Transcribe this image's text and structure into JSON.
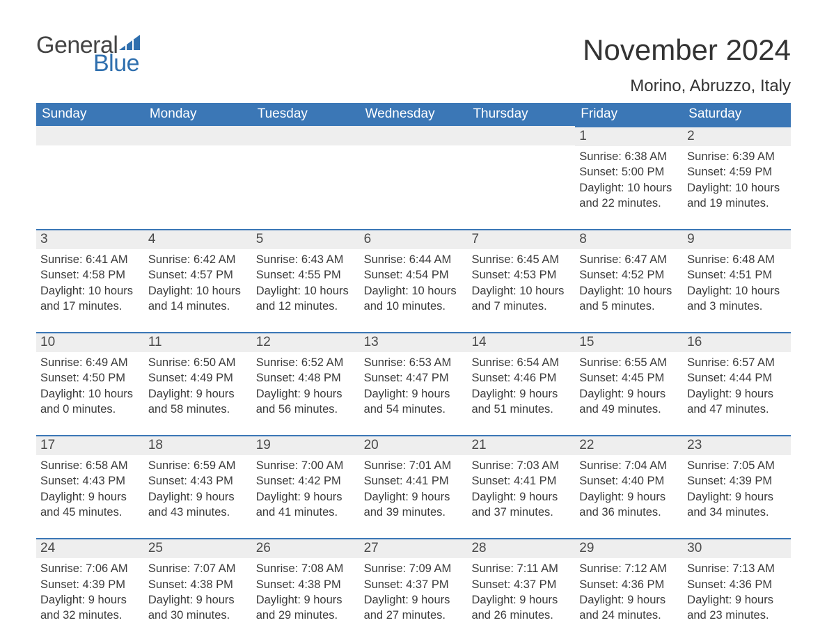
{
  "brand": {
    "word1": "General",
    "word2": "Blue",
    "text_color": "#444444",
    "accent_color": "#2f6fae"
  },
  "title": "November 2024",
  "location": "Morino, Abruzzo, Italy",
  "colors": {
    "header_bg": "#3b77b6",
    "header_text": "#ffffff",
    "daynum_bg": "#eeeeee",
    "day_border": "#3b77b6",
    "body_text": "#3b3b3b",
    "page_bg": "#ffffff"
  },
  "days_of_week": [
    "Sunday",
    "Monday",
    "Tuesday",
    "Wednesday",
    "Thursday",
    "Friday",
    "Saturday"
  ],
  "weeks": [
    [
      null,
      null,
      null,
      null,
      null,
      {
        "n": "1",
        "sunrise": "Sunrise: 6:38 AM",
        "sunset": "Sunset: 5:00 PM",
        "daylight": "Daylight: 10 hours and 22 minutes."
      },
      {
        "n": "2",
        "sunrise": "Sunrise: 6:39 AM",
        "sunset": "Sunset: 4:59 PM",
        "daylight": "Daylight: 10 hours and 19 minutes."
      }
    ],
    [
      {
        "n": "3",
        "sunrise": "Sunrise: 6:41 AM",
        "sunset": "Sunset: 4:58 PM",
        "daylight": "Daylight: 10 hours and 17 minutes."
      },
      {
        "n": "4",
        "sunrise": "Sunrise: 6:42 AM",
        "sunset": "Sunset: 4:57 PM",
        "daylight": "Daylight: 10 hours and 14 minutes."
      },
      {
        "n": "5",
        "sunrise": "Sunrise: 6:43 AM",
        "sunset": "Sunset: 4:55 PM",
        "daylight": "Daylight: 10 hours and 12 minutes."
      },
      {
        "n": "6",
        "sunrise": "Sunrise: 6:44 AM",
        "sunset": "Sunset: 4:54 PM",
        "daylight": "Daylight: 10 hours and 10 minutes."
      },
      {
        "n": "7",
        "sunrise": "Sunrise: 6:45 AM",
        "sunset": "Sunset: 4:53 PM",
        "daylight": "Daylight: 10 hours and 7 minutes."
      },
      {
        "n": "8",
        "sunrise": "Sunrise: 6:47 AM",
        "sunset": "Sunset: 4:52 PM",
        "daylight": "Daylight: 10 hours and 5 minutes."
      },
      {
        "n": "9",
        "sunrise": "Sunrise: 6:48 AM",
        "sunset": "Sunset: 4:51 PM",
        "daylight": "Daylight: 10 hours and 3 minutes."
      }
    ],
    [
      {
        "n": "10",
        "sunrise": "Sunrise: 6:49 AM",
        "sunset": "Sunset: 4:50 PM",
        "daylight": "Daylight: 10 hours and 0 minutes."
      },
      {
        "n": "11",
        "sunrise": "Sunrise: 6:50 AM",
        "sunset": "Sunset: 4:49 PM",
        "daylight": "Daylight: 9 hours and 58 minutes."
      },
      {
        "n": "12",
        "sunrise": "Sunrise: 6:52 AM",
        "sunset": "Sunset: 4:48 PM",
        "daylight": "Daylight: 9 hours and 56 minutes."
      },
      {
        "n": "13",
        "sunrise": "Sunrise: 6:53 AM",
        "sunset": "Sunset: 4:47 PM",
        "daylight": "Daylight: 9 hours and 54 minutes."
      },
      {
        "n": "14",
        "sunrise": "Sunrise: 6:54 AM",
        "sunset": "Sunset: 4:46 PM",
        "daylight": "Daylight: 9 hours and 51 minutes."
      },
      {
        "n": "15",
        "sunrise": "Sunrise: 6:55 AM",
        "sunset": "Sunset: 4:45 PM",
        "daylight": "Daylight: 9 hours and 49 minutes."
      },
      {
        "n": "16",
        "sunrise": "Sunrise: 6:57 AM",
        "sunset": "Sunset: 4:44 PM",
        "daylight": "Daylight: 9 hours and 47 minutes."
      }
    ],
    [
      {
        "n": "17",
        "sunrise": "Sunrise: 6:58 AM",
        "sunset": "Sunset: 4:43 PM",
        "daylight": "Daylight: 9 hours and 45 minutes."
      },
      {
        "n": "18",
        "sunrise": "Sunrise: 6:59 AM",
        "sunset": "Sunset: 4:43 PM",
        "daylight": "Daylight: 9 hours and 43 minutes."
      },
      {
        "n": "19",
        "sunrise": "Sunrise: 7:00 AM",
        "sunset": "Sunset: 4:42 PM",
        "daylight": "Daylight: 9 hours and 41 minutes."
      },
      {
        "n": "20",
        "sunrise": "Sunrise: 7:01 AM",
        "sunset": "Sunset: 4:41 PM",
        "daylight": "Daylight: 9 hours and 39 minutes."
      },
      {
        "n": "21",
        "sunrise": "Sunrise: 7:03 AM",
        "sunset": "Sunset: 4:41 PM",
        "daylight": "Daylight: 9 hours and 37 minutes."
      },
      {
        "n": "22",
        "sunrise": "Sunrise: 7:04 AM",
        "sunset": "Sunset: 4:40 PM",
        "daylight": "Daylight: 9 hours and 36 minutes."
      },
      {
        "n": "23",
        "sunrise": "Sunrise: 7:05 AM",
        "sunset": "Sunset: 4:39 PM",
        "daylight": "Daylight: 9 hours and 34 minutes."
      }
    ],
    [
      {
        "n": "24",
        "sunrise": "Sunrise: 7:06 AM",
        "sunset": "Sunset: 4:39 PM",
        "daylight": "Daylight: 9 hours and 32 minutes."
      },
      {
        "n": "25",
        "sunrise": "Sunrise: 7:07 AM",
        "sunset": "Sunset: 4:38 PM",
        "daylight": "Daylight: 9 hours and 30 minutes."
      },
      {
        "n": "26",
        "sunrise": "Sunrise: 7:08 AM",
        "sunset": "Sunset: 4:38 PM",
        "daylight": "Daylight: 9 hours and 29 minutes."
      },
      {
        "n": "27",
        "sunrise": "Sunrise: 7:09 AM",
        "sunset": "Sunset: 4:37 PM",
        "daylight": "Daylight: 9 hours and 27 minutes."
      },
      {
        "n": "28",
        "sunrise": "Sunrise: 7:11 AM",
        "sunset": "Sunset: 4:37 PM",
        "daylight": "Daylight: 9 hours and 26 minutes."
      },
      {
        "n": "29",
        "sunrise": "Sunrise: 7:12 AM",
        "sunset": "Sunset: 4:36 PM",
        "daylight": "Daylight: 9 hours and 24 minutes."
      },
      {
        "n": "30",
        "sunrise": "Sunrise: 7:13 AM",
        "sunset": "Sunset: 4:36 PM",
        "daylight": "Daylight: 9 hours and 23 minutes."
      }
    ]
  ]
}
